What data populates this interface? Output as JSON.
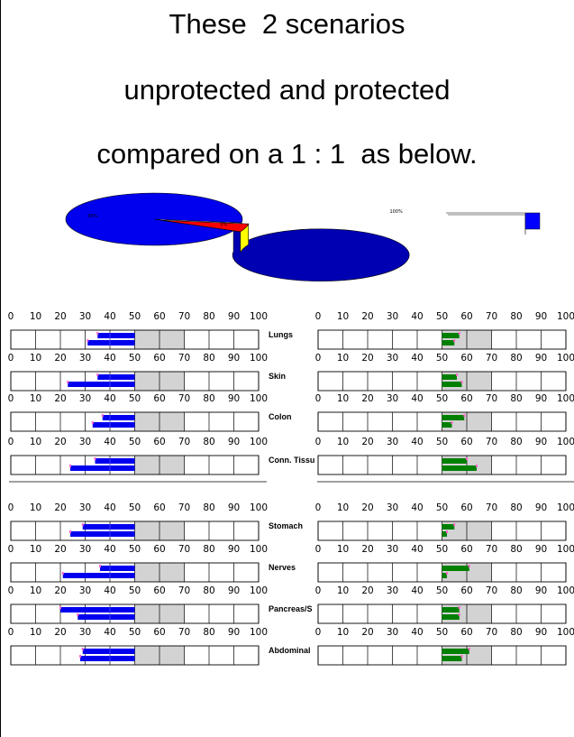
{
  "title_lines": [
    "These  2 scenarios",
    "unprotected and protected",
    "compared on a 1 : 1  as below."
  ],
  "colors": {
    "unprotected": "#0000ee",
    "protected": "#008000",
    "pie_slice_red": "#ff0000",
    "pie_slice_yellow": "#ffff00",
    "pie_slice_blue": "#0000ff",
    "shaded_band": "#d3d3d3",
    "marker": "#ff66cc"
  },
  "chart_data": [
    {
      "type": "pie",
      "name": "unprotected",
      "slices": [
        {
          "label": "95%",
          "value": 95,
          "color": "#0000ee"
        },
        {
          "label": "5%",
          "value": 5,
          "color": "#ff0000"
        }
      ]
    },
    {
      "type": "pie",
      "name": "protected",
      "slices": [
        {
          "label": "100%",
          "value": 100,
          "color": "#008000"
        },
        {
          "label": "",
          "value": 0,
          "color": "#0000ff"
        }
      ]
    },
    {
      "type": "bar",
      "orientation": "horizontal",
      "xlim": [
        0,
        100
      ],
      "xticks": [
        "0",
        "10",
        "20",
        "30",
        "40",
        "50",
        "60",
        "70",
        "80",
        "90",
        "100"
      ],
      "shaded_band": [
        50,
        70
      ],
      "panels": [
        {
          "organ": "Lungs",
          "unprotected": [
            [
              35,
              50
            ],
            [
              31,
              50
            ]
          ],
          "protected": [
            [
              50,
              57
            ],
            [
              50,
              55
            ]
          ]
        },
        {
          "organ": "Skin",
          "unprotected": [
            [
              35,
              50
            ],
            [
              23,
              50
            ]
          ],
          "protected": [
            [
              50,
              56
            ],
            [
              50,
              58
            ]
          ]
        },
        {
          "organ": "Colon",
          "unprotected": [
            [
              37,
              50
            ],
            [
              33,
              50
            ]
          ],
          "protected": [
            [
              50,
              59
            ],
            [
              50,
              54
            ]
          ]
        },
        {
          "organ": "Conn. Tissu",
          "unprotected": [
            [
              34,
              50
            ],
            [
              24,
              50
            ]
          ],
          "protected": [
            [
              50,
              60
            ],
            [
              50,
              64
            ]
          ]
        },
        {
          "organ": "Stomach",
          "unprotected": [
            [
              29,
              50
            ],
            [
              24,
              50
            ]
          ],
          "protected": [
            [
              50,
              55
            ],
            [
              50,
              52
            ]
          ]
        },
        {
          "organ": "Nerves",
          "unprotected": [
            [
              36,
              50
            ],
            [
              21,
              50
            ]
          ],
          "protected": [
            [
              50,
              61
            ],
            [
              50,
              52
            ]
          ]
        },
        {
          "organ": "Pancreas/S",
          "unprotected": [
            [
              20,
              50
            ],
            [
              27,
              50
            ]
          ],
          "protected": [
            [
              50,
              57
            ],
            [
              50,
              57
            ]
          ]
        },
        {
          "organ": "Abdominal",
          "unprotected": [
            [
              29,
              50
            ],
            [
              28,
              50
            ]
          ],
          "protected": [
            [
              50,
              61
            ],
            [
              50,
              58
            ]
          ]
        }
      ]
    }
  ]
}
